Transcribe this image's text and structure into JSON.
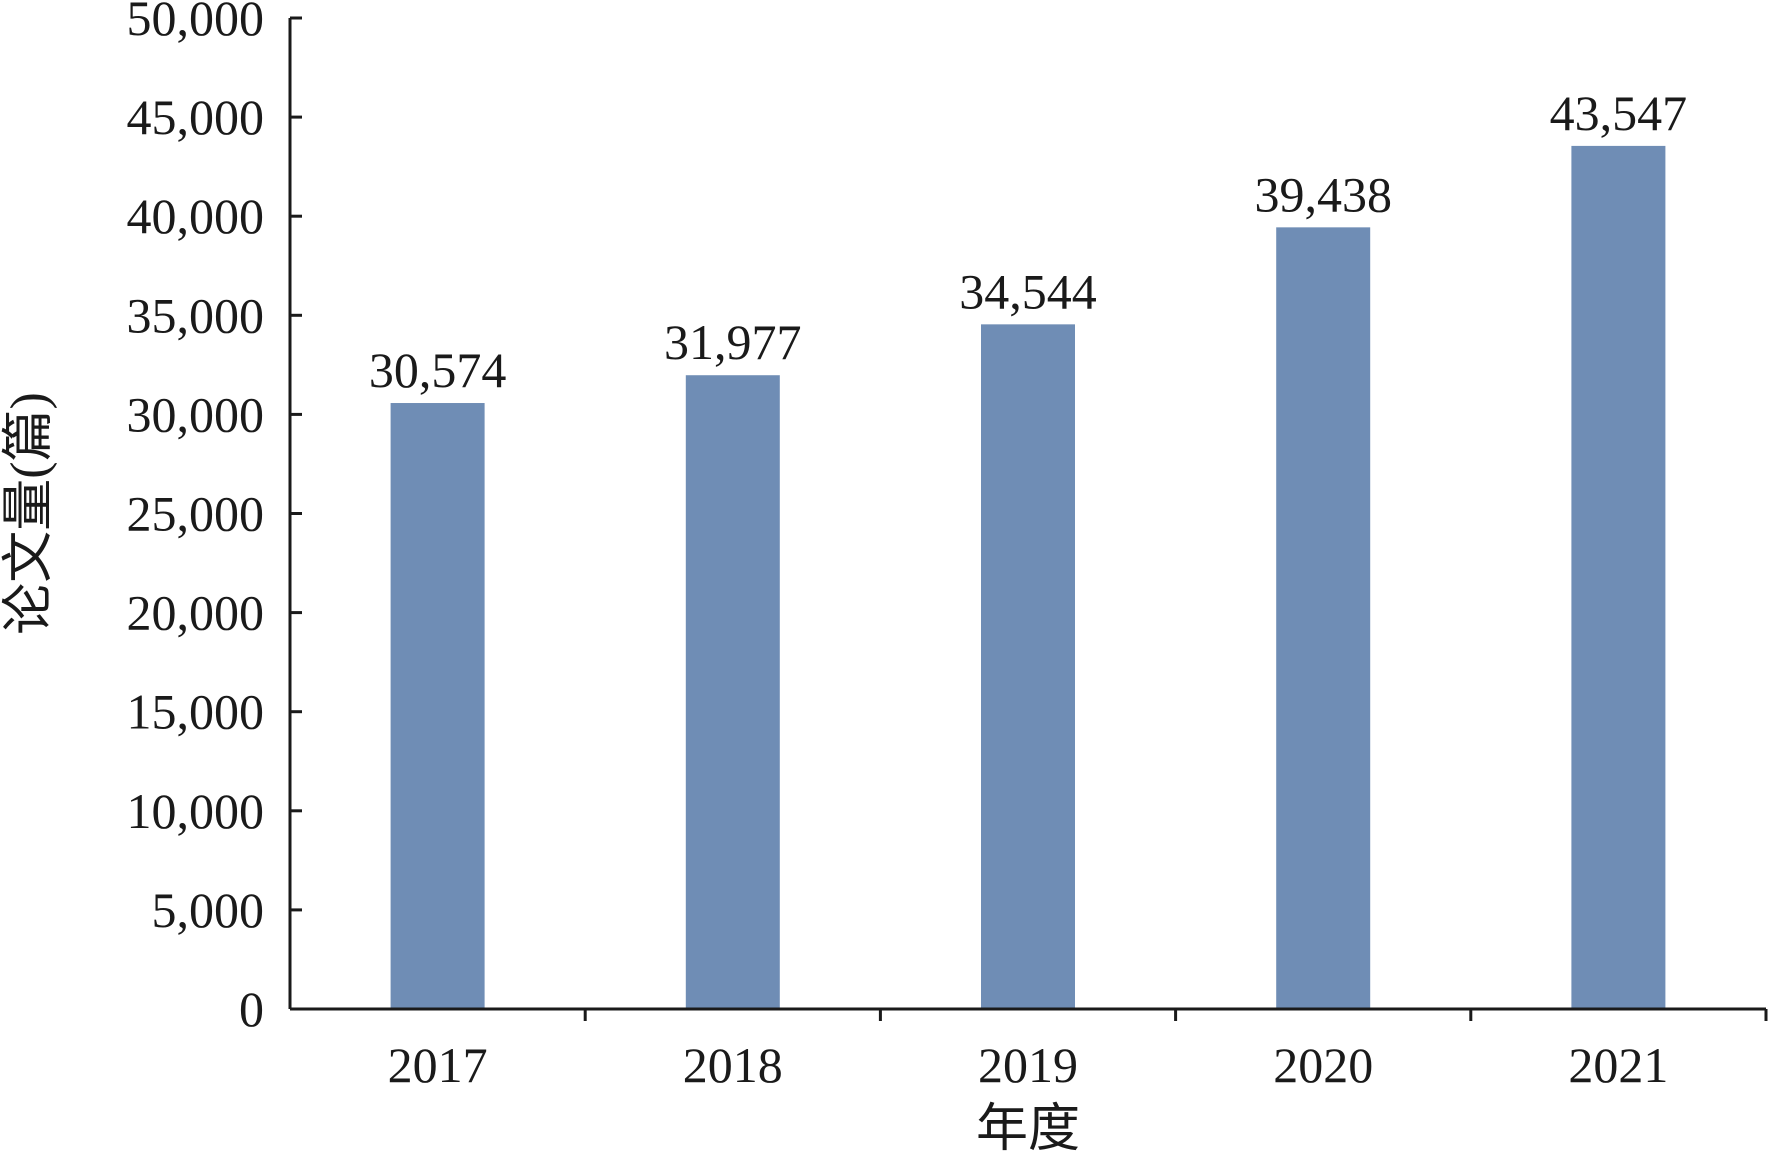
{
  "chart_data": {
    "type": "bar",
    "title": "",
    "xlabel": "年度",
    "ylabel": "论文量(篇)",
    "categories": [
      "2017",
      "2018",
      "2019",
      "2020",
      "2021"
    ],
    "values": [
      30574,
      31977,
      34544,
      39438,
      43547
    ],
    "value_labels": [
      "30,574",
      "31,977",
      "34,544",
      "39,438",
      "43,547"
    ],
    "ylim": [
      0,
      50000
    ],
    "y_ticks": [
      0,
      5000,
      10000,
      15000,
      20000,
      25000,
      30000,
      35000,
      40000,
      45000,
      50000
    ],
    "y_tick_labels": [
      "0",
      "5,000",
      "10,000",
      "15,000",
      "20,000",
      "25,000",
      "30,000",
      "35,000",
      "40,000",
      "45,000",
      "50,000"
    ],
    "grid": false,
    "legend": "none",
    "bar_color": "#6f8db5",
    "axis_color": "#1a1a1a"
  }
}
